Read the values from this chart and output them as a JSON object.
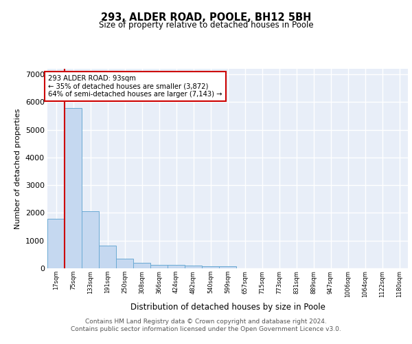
{
  "title": "293, ALDER ROAD, POOLE, BH12 5BH",
  "subtitle": "Size of property relative to detached houses in Poole",
  "xlabel": "Distribution of detached houses by size in Poole",
  "ylabel": "Number of detached properties",
  "bar_values": [
    1780,
    5780,
    2060,
    820,
    340,
    200,
    130,
    120,
    110,
    80,
    75,
    0,
    0,
    0,
    0,
    0,
    0,
    0,
    0,
    0,
    0
  ],
  "bin_labels": [
    "17sqm",
    "75sqm",
    "133sqm",
    "191sqm",
    "250sqm",
    "308sqm",
    "366sqm",
    "424sqm",
    "482sqm",
    "540sqm",
    "599sqm",
    "657sqm",
    "715sqm",
    "773sqm",
    "831sqm",
    "889sqm",
    "947sqm",
    "1006sqm",
    "1064sqm",
    "1122sqm",
    "1180sqm"
  ],
  "bar_color": "#c5d8f0",
  "bar_edge_color": "#6aaad4",
  "highlight_color": "#cc0000",
  "red_line_x": 1.5,
  "annotation_title": "293 ALDER ROAD: 93sqm",
  "annotation_line1": "← 35% of detached houses are smaller (3,872)",
  "annotation_line2": "64% of semi-detached houses are larger (7,143) →",
  "ylim": [
    0,
    7200
  ],
  "yticks": [
    0,
    1000,
    2000,
    3000,
    4000,
    5000,
    6000,
    7000
  ],
  "footer1": "Contains HM Land Registry data © Crown copyright and database right 2024.",
  "footer2": "Contains public sector information licensed under the Open Government Licence v3.0.",
  "bg_color": "#e8eef8",
  "grid_color": "#ffffff",
  "fig_bg_color": "#ffffff"
}
